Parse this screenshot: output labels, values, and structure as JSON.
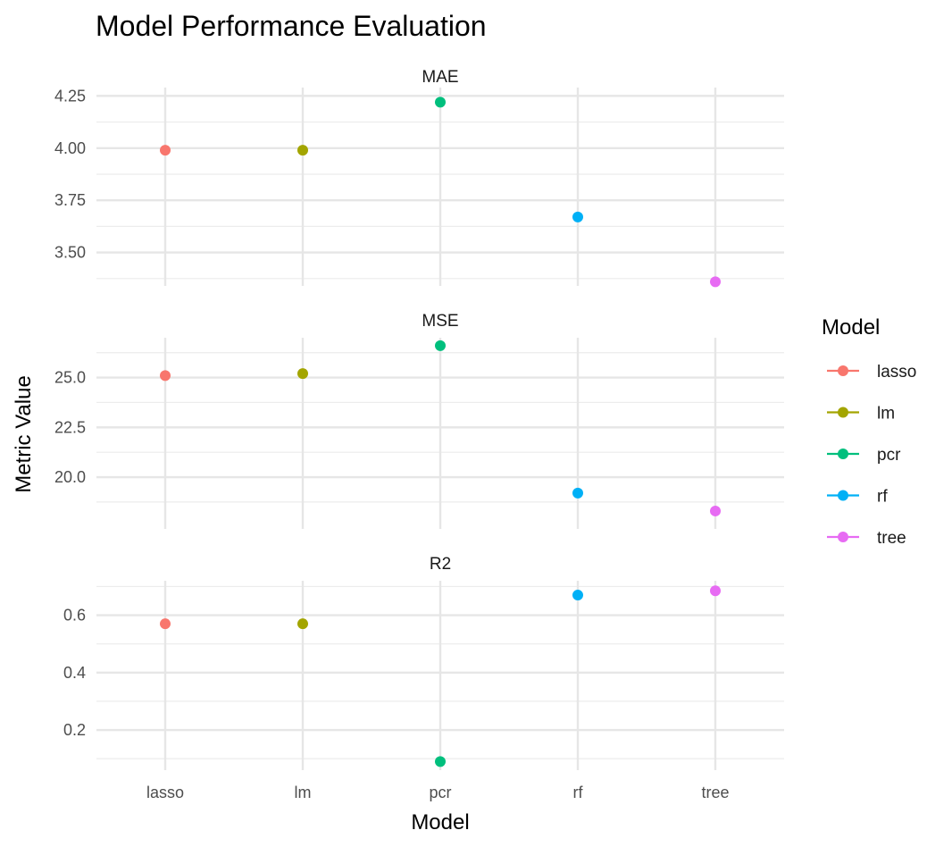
{
  "chart_data": {
    "type": "scatter",
    "title": "Model Performance Evaluation",
    "xlabel": "Model",
    "ylabel": "Metric Value",
    "categories": [
      "lasso",
      "lm",
      "pcr",
      "rf",
      "tree"
    ],
    "legend": {
      "title": "Model",
      "position": "right",
      "entries": [
        "lasso",
        "lm",
        "pcr",
        "rf",
        "tree"
      ]
    },
    "colors": {
      "lasso": "#F8766D",
      "lm": "#A3A500",
      "pcr": "#00BF7D",
      "rf": "#00B0F6",
      "tree": "#E76BF3"
    },
    "grid": true,
    "panels": [
      {
        "name": "MAE",
        "ylim": [
          3.34,
          4.29
        ],
        "yticks": [
          3.5,
          3.75,
          4.0,
          4.25
        ],
        "ytick_labels": [
          "3.50",
          "3.75",
          "4.00",
          "4.25"
        ],
        "yminor": [
          3.375,
          3.625,
          3.875,
          4.125
        ],
        "values": {
          "lasso": 3.99,
          "lm": 3.99,
          "pcr": 4.22,
          "rf": 3.67,
          "tree": 3.36
        }
      },
      {
        "name": "MSE",
        "ylim": [
          17.4,
          27.0
        ],
        "yticks": [
          20.0,
          22.5,
          25.0
        ],
        "ytick_labels": [
          "20.0",
          "22.5",
          "25.0"
        ],
        "yminor": [
          18.75,
          21.25,
          23.75,
          26.25
        ],
        "values": {
          "lasso": 25.1,
          "lm": 25.2,
          "pcr": 26.6,
          "rf": 19.2,
          "tree": 18.3
        }
      },
      {
        "name": "R2",
        "ylim": [
          0.06,
          0.72
        ],
        "yticks": [
          0.2,
          0.4,
          0.6
        ],
        "ytick_labels": [
          "0.2",
          "0.4",
          "0.6"
        ],
        "yminor": [
          0.1,
          0.3,
          0.5,
          0.7
        ],
        "values": {
          "lasso": 0.57,
          "lm": 0.57,
          "pcr": 0.09,
          "rf": 0.67,
          "tree": 0.685
        }
      }
    ]
  }
}
